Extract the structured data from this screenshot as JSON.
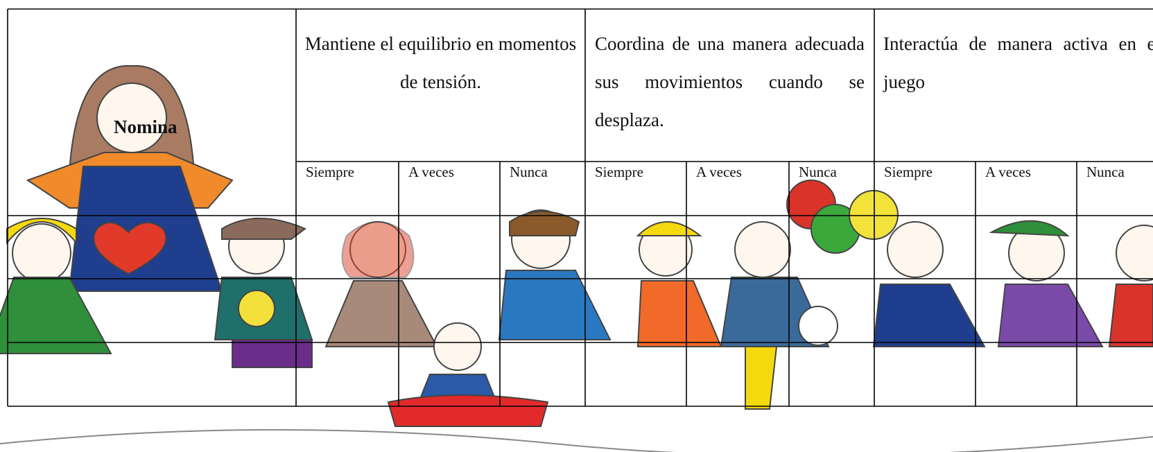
{
  "header": {
    "nomina": "Nomina"
  },
  "criteria": [
    {
      "text": "Mantiene el equilibrio en momentos de tensión."
    },
    {
      "text": "Coordina de una manera adecuada sus movimientos cuando se desplaza."
    },
    {
      "text": "Interactúa de manera activa en el juego"
    }
  ],
  "options": [
    "Siempre",
    "A veces",
    "Nunca"
  ]
}
